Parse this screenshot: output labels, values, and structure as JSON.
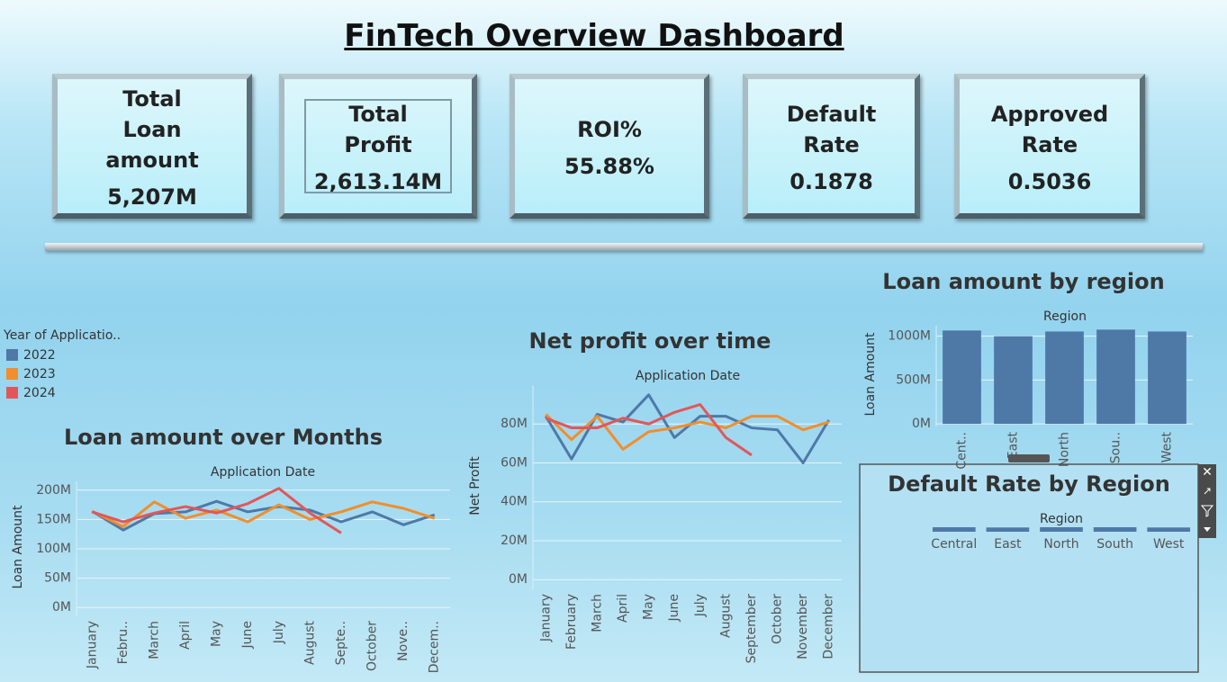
{
  "title": "FinTech Overview Dashboard",
  "kpis": [
    {
      "label": "Total Loan amount",
      "value": "5,207M"
    },
    {
      "label": "Total Profit",
      "value": "2,613.14M"
    },
    {
      "label": "ROI%",
      "value": "55.88%"
    },
    {
      "label": "Default Rate",
      "value": "0.1878"
    },
    {
      "label": "Approved Rate",
      "value": "0.5036"
    }
  ],
  "chart_data": [
    {
      "type": "line",
      "title": "Loan amount over Months",
      "xlabel": "Application Date",
      "ylabel": "Loan Amount",
      "legend_title": "Year of Applicatio..",
      "categories": [
        "January",
        "Febru..",
        "March",
        "April",
        "May",
        "June",
        "July",
        "August",
        "Septe..",
        "October",
        "Nove..",
        "Decem.."
      ],
      "series": [
        {
          "name": "2022",
          "color": "#4e79a7",
          "values": [
            164,
            132,
            160,
            163,
            181,
            163,
            172,
            166,
            146,
            163,
            141,
            158
          ]
        },
        {
          "name": "2023",
          "color": "#f28e2b",
          "values": [
            164,
            138,
            180,
            152,
            166,
            146,
            175,
            150,
            163,
            180,
            169,
            152
          ]
        },
        {
          "name": "2024",
          "color": "#e15759",
          "values": [
            163,
            146,
            161,
            172,
            161,
            177,
            203,
            161,
            127,
            null,
            null,
            null
          ]
        }
      ],
      "ylim": [
        -15,
        215
      ],
      "yticks": [
        {
          "value": 0,
          "label": "0M"
        },
        {
          "value": 50,
          "label": "50M"
        },
        {
          "value": 100,
          "label": "100M"
        },
        {
          "value": 150,
          "label": "150M"
        },
        {
          "value": 200,
          "label": "200M"
        }
      ],
      "grid": true
    },
    {
      "type": "line",
      "title": "Net profit over time",
      "xlabel": "Application Date",
      "ylabel": "Net Profit",
      "categories": [
        "January",
        "February",
        "March",
        "April",
        "May",
        "June",
        "July",
        "August",
        "September",
        "October",
        "November",
        "December"
      ],
      "series": [
        {
          "name": "2022",
          "color": "#4e79a7",
          "values": [
            84,
            62,
            85,
            81,
            95,
            73,
            84,
            84,
            78,
            77,
            60,
            82
          ]
        },
        {
          "name": "2023",
          "color": "#f28e2b",
          "values": [
            85,
            72,
            84,
            67,
            76,
            78,
            81,
            78,
            84,
            84,
            77,
            81
          ]
        },
        {
          "name": "2024",
          "color": "#e15759",
          "values": [
            83,
            78,
            78,
            83,
            80,
            86,
            90,
            73,
            64,
            null,
            null,
            null
          ]
        }
      ],
      "ylim": [
        -5,
        100
      ],
      "yticks": [
        {
          "value": 0,
          "label": "0M"
        },
        {
          "value": 20,
          "label": "20M"
        },
        {
          "value": 40,
          "label": "40M"
        },
        {
          "value": 60,
          "label": "60M"
        },
        {
          "value": 80,
          "label": "80M"
        }
      ],
      "grid": true
    },
    {
      "type": "bar",
      "title": "Loan amount by region",
      "xlabel": "Region",
      "ylabel": "Loan Amount",
      "categories": [
        "Cent..",
        "East",
        "North",
        "Sou..",
        "West"
      ],
      "values": [
        1065,
        1000,
        1054,
        1075,
        1054
      ],
      "color": "#4e79a7",
      "ylim": [
        -30,
        1120
      ],
      "yticks": [
        {
          "value": 0,
          "label": "0M"
        },
        {
          "value": 500,
          "label": "500M"
        },
        {
          "value": 1000,
          "label": "1000M"
        }
      ],
      "grid": true
    },
    {
      "type": "bar",
      "title": "Default Rate by Region",
      "xlabel": "Region",
      "categories": [
        "Central",
        "East",
        "North",
        "South",
        "West"
      ],
      "values": [
        0.19,
        0.18,
        0.19,
        0.19,
        0.18
      ],
      "color": "#4e79a7",
      "ylim": [
        0,
        0.19
      ],
      "grid": false
    }
  ]
}
